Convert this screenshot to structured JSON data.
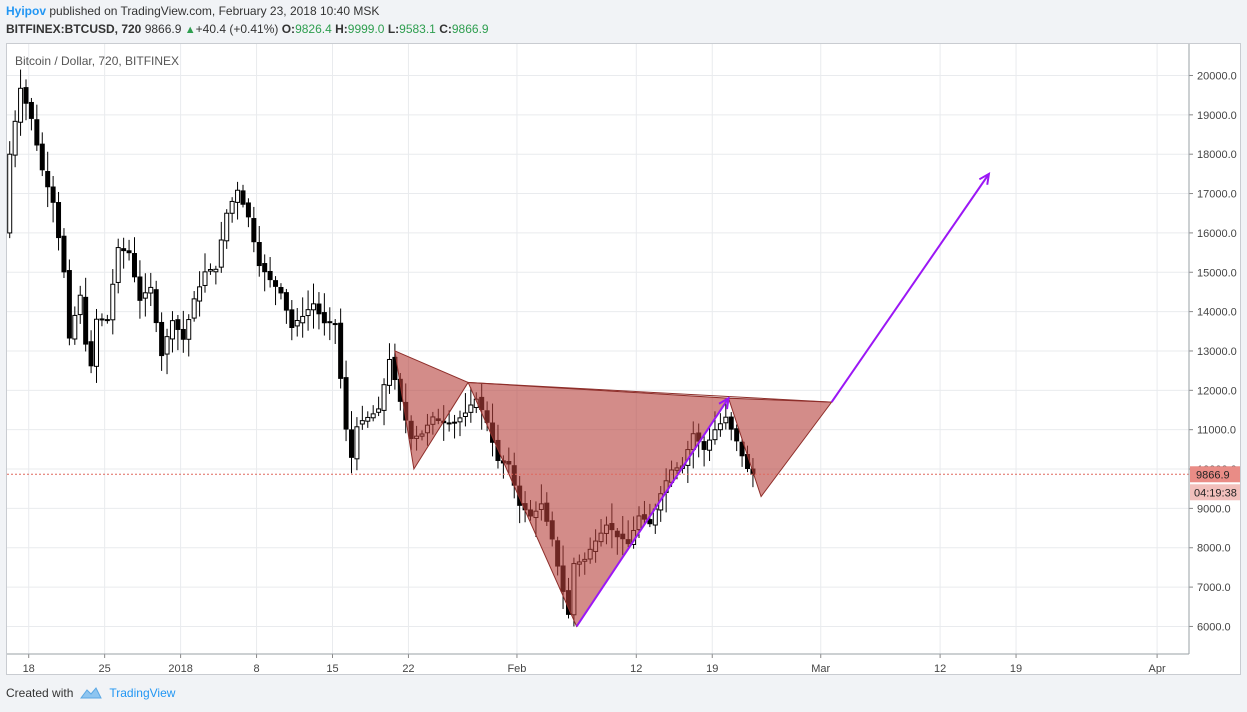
{
  "header": {
    "author": "Hyipov",
    "published": "published on TradingView.com, February 23, 2018 10:40 MSK",
    "symbol": "BITFINEX:BTCUSD, 720",
    "last": "9866.9",
    "change": "+40.4 (+0.41%)",
    "o_label": "O:",
    "o": "9826.4",
    "h_label": "H:",
    "h": "9999.0",
    "l_label": "L:",
    "l": "9583.1",
    "c_label": "C:",
    "c": "9866.9"
  },
  "footer": {
    "created_with": "Created with",
    "brand": "TradingView"
  },
  "colors": {
    "pattern_fill": "#b5403a",
    "arrow": "#9b17f5",
    "up": "#ffffff",
    "down": "#000000",
    "price_tag": "#e98c86",
    "timer_tag": "#f2c0bc",
    "accent_blue": "#2196f3"
  },
  "chart_data": {
    "type": "candlestick",
    "title": "Bitcoin / Dollar, 720, BITFINEX",
    "y_axis": {
      "min": 5300,
      "max": 20800,
      "ticks": [
        6000,
        7000,
        8000,
        9000,
        10000,
        11000,
        12000,
        13000,
        14000,
        15000,
        16000,
        17000,
        18000,
        19000,
        20000
      ],
      "tick_labels": [
        "6000.0",
        "7000.0",
        "8000.0",
        "9000.0",
        "10000.0",
        "11000.0",
        "12000.0",
        "13000.0",
        "14000.0",
        "15000.0",
        "16000.0",
        "17000.0",
        "18000.0",
        "19000.0",
        "20000.0"
      ]
    },
    "x_axis": {
      "start_date": "2017-12-16",
      "end_date": "2018-04-08",
      "ticks": [
        {
          "date": "2017-12-18",
          "label": "18"
        },
        {
          "date": "2017-12-25",
          "label": "25"
        },
        {
          "date": "2018-01-01",
          "label": "2018"
        },
        {
          "date": "2018-01-08",
          "label": "8"
        },
        {
          "date": "2018-01-15",
          "label": "15"
        },
        {
          "date": "2018-01-22",
          "label": "22"
        },
        {
          "date": "2018-02-01",
          "label": "Feb"
        },
        {
          "date": "2018-02-12",
          "label": "12"
        },
        {
          "date": "2018-02-19",
          "label": "19"
        },
        {
          "date": "2018-03-01",
          "label": "Mar"
        },
        {
          "date": "2018-03-12",
          "label": "12"
        },
        {
          "date": "2018-03-19",
          "label": "19"
        },
        {
          "date": "2018-04-01",
          "label": "Apr"
        }
      ]
    },
    "last_price": {
      "value": 9866.9,
      "label": "9866.9",
      "countdown": "04:19:38"
    },
    "price_path": [
      {
        "date": "2017-12-16 00:00",
        "price": 16000
      },
      {
        "date": "2017-12-16 12:00",
        "price": 18000
      },
      {
        "date": "2017-12-17 12:00",
        "price": 19700
      },
      {
        "date": "2017-12-18 12:00",
        "price": 18900
      },
      {
        "date": "2017-12-19 12:00",
        "price": 17600
      },
      {
        "date": "2017-12-20 12:00",
        "price": 16800
      },
      {
        "date": "2017-12-21 12:00",
        "price": 15000
      },
      {
        "date": "2017-12-22 00:00",
        "price": 13300
      },
      {
        "date": "2017-12-22 12:00",
        "price": 13900
      },
      {
        "date": "2017-12-23 00:00",
        "price": 14400
      },
      {
        "date": "2017-12-23 12:00",
        "price": 13200
      },
      {
        "date": "2017-12-24 00:00",
        "price": 12600
      },
      {
        "date": "2017-12-24 12:00",
        "price": 13800
      },
      {
        "date": "2017-12-25 12:00",
        "price": 13800
      },
      {
        "date": "2017-12-26 12:00",
        "price": 15600
      },
      {
        "date": "2017-12-27 12:00",
        "price": 15500
      },
      {
        "date": "2017-12-28 12:00",
        "price": 14300
      },
      {
        "date": "2017-12-29 12:00",
        "price": 14600
      },
      {
        "date": "2017-12-30 12:00",
        "price": 12900
      },
      {
        "date": "2017-12-31 12:00",
        "price": 13800
      },
      {
        "date": "2018-01-01 12:00",
        "price": 13300
      },
      {
        "date": "2018-01-02 12:00",
        "price": 14300
      },
      {
        "date": "2018-01-03 12:00",
        "price": 15000
      },
      {
        "date": "2018-01-04 12:00",
        "price": 15100
      },
      {
        "date": "2018-01-05 12:00",
        "price": 16500
      },
      {
        "date": "2018-01-06 12:00",
        "price": 17100
      },
      {
        "date": "2018-01-07 12:00",
        "price": 16400
      },
      {
        "date": "2018-01-08 12:00",
        "price": 15200
      },
      {
        "date": "2018-01-09 12:00",
        "price": 14800
      },
      {
        "date": "2018-01-10 12:00",
        "price": 14500
      },
      {
        "date": "2018-01-11 12:00",
        "price": 13600
      },
      {
        "date": "2018-01-12 12:00",
        "price": 13900
      },
      {
        "date": "2018-01-13 12:00",
        "price": 14200
      },
      {
        "date": "2018-01-14 12:00",
        "price": 13700
      },
      {
        "date": "2018-01-15 12:00",
        "price": 13700
      },
      {
        "date": "2018-01-16 00:00",
        "price": 12300
      },
      {
        "date": "2018-01-16 12:00",
        "price": 11000
      },
      {
        "date": "2018-01-17 00:00",
        "price": 10300
      },
      {
        "date": "2018-01-17 12:00",
        "price": 11100
      },
      {
        "date": "2018-01-18 12:00",
        "price": 11300
      },
      {
        "date": "2018-01-19 12:00",
        "price": 11500
      },
      {
        "date": "2018-01-20 12:00",
        "price": 12800
      },
      {
        "date": "2018-01-21 12:00",
        "price": 11700
      },
      {
        "date": "2018-01-22 12:00",
        "price": 10800
      },
      {
        "date": "2018-01-23 12:00",
        "price": 10900
      },
      {
        "date": "2018-01-24 12:00",
        "price": 11300
      },
      {
        "date": "2018-01-25 12:00",
        "price": 11200
      },
      {
        "date": "2018-01-26 12:00",
        "price": 11200
      },
      {
        "date": "2018-01-27 12:00",
        "price": 11400
      },
      {
        "date": "2018-01-28 12:00",
        "price": 11800
      },
      {
        "date": "2018-01-29 12:00",
        "price": 11200
      },
      {
        "date": "2018-01-30 12:00",
        "price": 10200
      },
      {
        "date": "2018-01-31 12:00",
        "price": 10100
      },
      {
        "date": "2018-02-01 12:00",
        "price": 9100
      },
      {
        "date": "2018-02-02 12:00",
        "price": 8800
      },
      {
        "date": "2018-02-03 12:00",
        "price": 9100
      },
      {
        "date": "2018-02-04 12:00",
        "price": 8200
      },
      {
        "date": "2018-02-05 12:00",
        "price": 6900
      },
      {
        "date": "2018-02-06 00:00",
        "price": 6300
      },
      {
        "date": "2018-02-06 12:00",
        "price": 7600
      },
      {
        "date": "2018-02-07 12:00",
        "price": 7700
      },
      {
        "date": "2018-02-08 12:00",
        "price": 8200
      },
      {
        "date": "2018-02-09 12:00",
        "price": 8600
      },
      {
        "date": "2018-02-10 12:00",
        "price": 8300
      },
      {
        "date": "2018-02-11 12:00",
        "price": 8100
      },
      {
        "date": "2018-02-12 12:00",
        "price": 8800
      },
      {
        "date": "2018-02-13 12:00",
        "price": 8600
      },
      {
        "date": "2018-02-14 12:00",
        "price": 9400
      },
      {
        "date": "2018-02-15 12:00",
        "price": 10000
      },
      {
        "date": "2018-02-16 12:00",
        "price": 10100
      },
      {
        "date": "2018-02-17 12:00",
        "price": 10900
      },
      {
        "date": "2018-02-18 12:00",
        "price": 10500
      },
      {
        "date": "2018-02-19 12:00",
        "price": 11000
      },
      {
        "date": "2018-02-20 12:00",
        "price": 11300
      },
      {
        "date": "2018-02-21 12:00",
        "price": 10700
      },
      {
        "date": "2018-02-22 12:00",
        "price": 10000
      },
      {
        "date": "2018-02-23 00:00",
        "price": 9866.9
      }
    ],
    "pattern": {
      "points": [
        {
          "date": "2018-01-20 18:00",
          "price": 13000
        },
        {
          "date": "2018-01-22 12:00",
          "price": 10000
        },
        {
          "date": "2018-01-27 12:00",
          "price": 12200
        },
        {
          "date": "2018-02-06 12:00",
          "price": 6000
        },
        {
          "date": "2018-02-20 12:00",
          "price": 11800
        },
        {
          "date": "2018-02-23 12:00",
          "price": 9300
        },
        {
          "date": "2018-03-02 00:00",
          "price": 11700
        }
      ],
      "triangles": [
        [
          0,
          1,
          2
        ],
        [
          2,
          3,
          4
        ],
        [
          4,
          5,
          6
        ]
      ],
      "top_line": [
        2,
        6
      ]
    },
    "arrows": [
      {
        "from": {
          "date": "2018-02-06 12:00",
          "price": 6000
        },
        "to": {
          "date": "2018-02-20 12:00",
          "price": 11800
        }
      },
      {
        "from": {
          "date": "2018-03-02 00:00",
          "price": 11700
        },
        "to": {
          "date": "2018-03-16 12:00",
          "price": 17500
        }
      }
    ]
  }
}
